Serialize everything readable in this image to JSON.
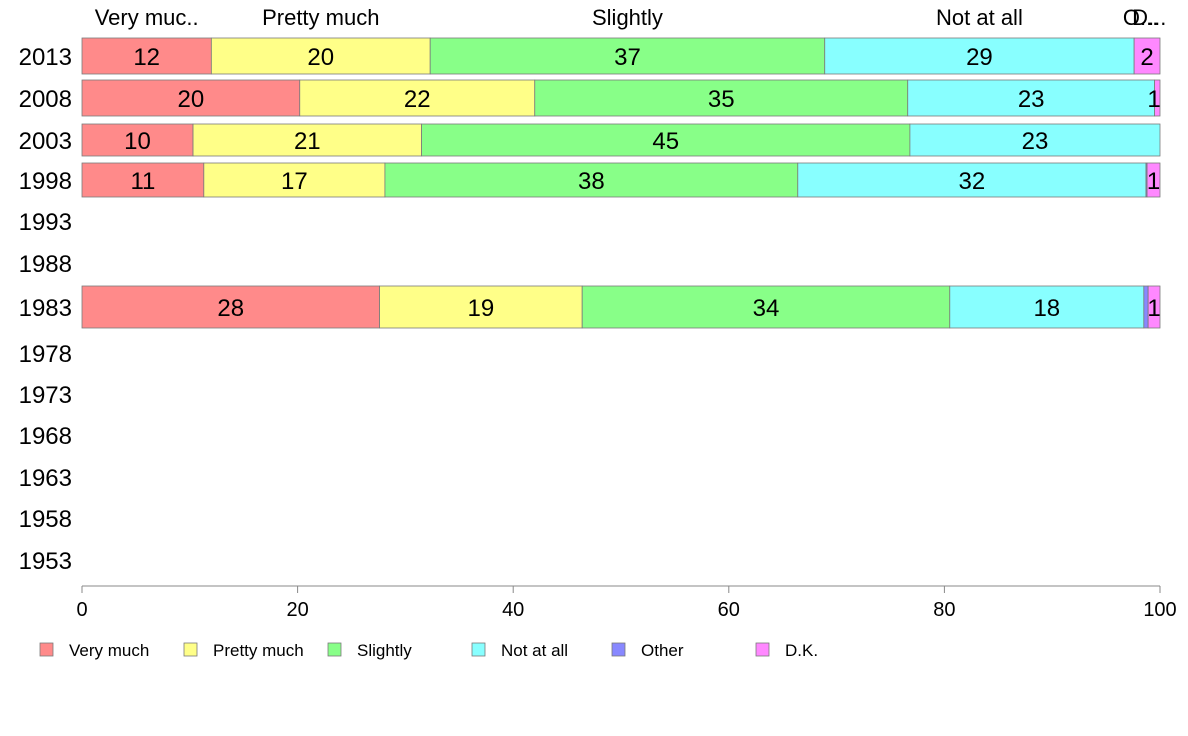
{
  "chart_data": {
    "type": "bar",
    "orientation": "horizontal",
    "stacked": true,
    "categories": [
      "2013",
      "2008",
      "2003",
      "1998",
      "1993",
      "1988",
      "1983",
      "1978",
      "1973",
      "1968",
      "1963",
      "1958",
      "1953"
    ],
    "series": [
      {
        "name": "Very much",
        "color": "#ff8a8a",
        "values": [
          12,
          20.2,
          10.3,
          11.3,
          null,
          null,
          27.6,
          null,
          null,
          null,
          null,
          null,
          null
        ]
      },
      {
        "name": "Pretty much",
        "color": "#ffff88",
        "values": [
          20.3,
          21.8,
          21.2,
          16.8,
          null,
          null,
          18.8,
          null,
          null,
          null,
          null,
          null,
          null
        ]
      },
      {
        "name": "Slightly",
        "color": "#88ff88",
        "values": [
          36.6,
          34.6,
          45.3,
          38.3,
          null,
          null,
          34.1,
          null,
          null,
          null,
          null,
          null,
          null
        ]
      },
      {
        "name": "Not at all",
        "color": "#88ffff",
        "values": [
          28.7,
          22.9,
          23.2,
          32.3,
          null,
          null,
          18.0,
          null,
          null,
          null,
          null,
          null,
          null
        ]
      },
      {
        "name": "Other",
        "color": "#8888ff",
        "values": [
          0,
          0,
          0,
          0.1,
          null,
          null,
          0.4,
          null,
          null,
          null,
          null,
          null,
          null
        ]
      },
      {
        "name": "D.K.",
        "color": "#ff88ff",
        "values": [
          2.4,
          0.5,
          0.0,
          1.2,
          null,
          null,
          1.1,
          null,
          null,
          null,
          null,
          null,
          null
        ]
      }
    ],
    "segment_labels": [
      [
        "12",
        "20",
        "37",
        "29",
        "",
        "2"
      ],
      [
        "20",
        "22",
        "35",
        "23",
        "",
        "1"
      ],
      [
        "10",
        "21",
        "45",
        "23",
        "",
        ""
      ],
      [
        "11",
        "17",
        "38",
        "32",
        "",
        "1"
      ],
      [],
      [],
      [
        "28",
        "19",
        "34",
        "18",
        "",
        "1"
      ],
      [],
      [],
      [],
      [],
      [],
      []
    ],
    "top_labels": [
      "Very muc..",
      "Pretty much",
      "Slightly",
      "Not at all",
      "O...",
      "D..."
    ],
    "xlim": [
      0,
      100
    ],
    "xticks": [
      "0",
      "20",
      "40",
      "60",
      "80",
      "100"
    ],
    "grid": false,
    "legend_position": "bottom-left",
    "title": "",
    "xlabel": "",
    "ylabel": ""
  }
}
